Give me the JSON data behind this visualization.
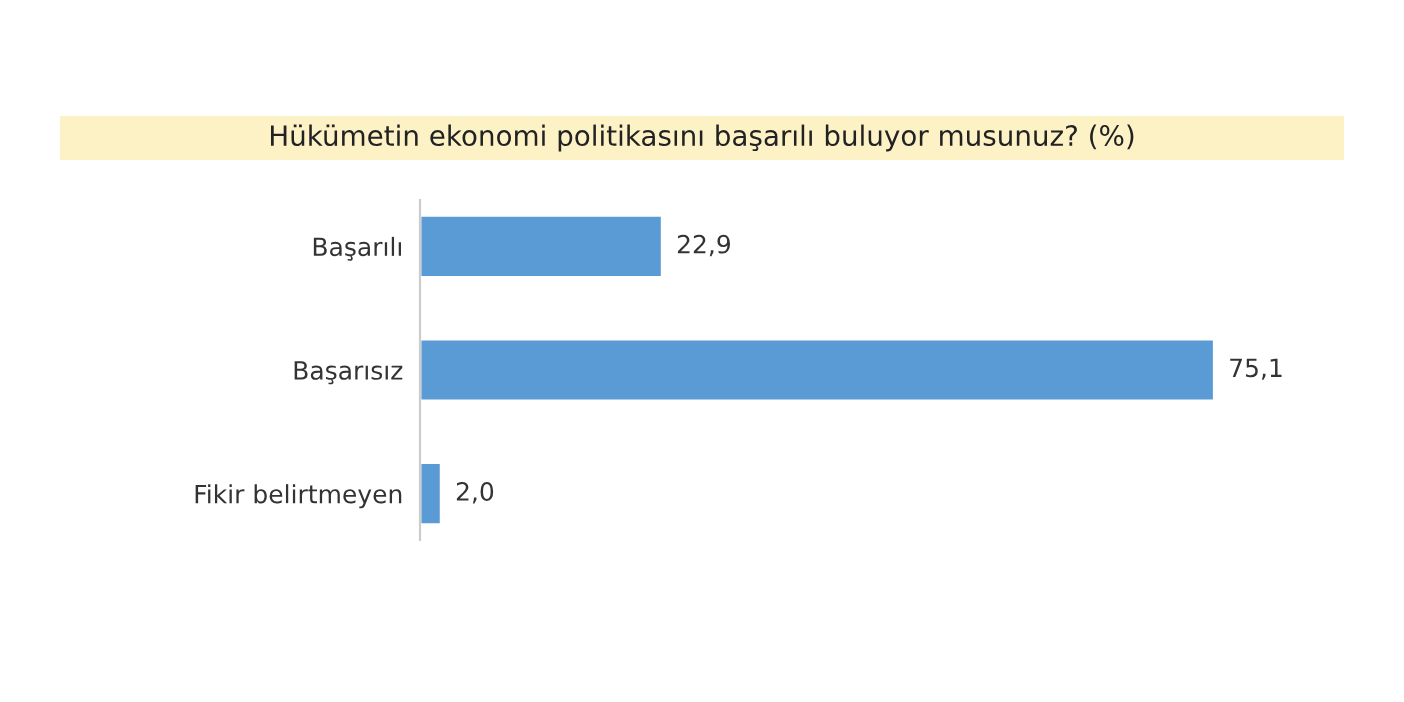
{
  "chart_data": {
    "type": "bar",
    "orientation": "horizontal",
    "title": "Hükümetin ekonomi politikasını başarılı buluyor musunuz? (%)",
    "categories": [
      "Başarılı",
      "Başarısız",
      "Fikir belirtmeyen"
    ],
    "values": [
      22.9,
      75.1,
      2.0
    ],
    "value_labels": [
      "22,9",
      "75,1",
      "2,0"
    ],
    "color": "#5b9bd5",
    "grid": false,
    "legend": false
  }
}
